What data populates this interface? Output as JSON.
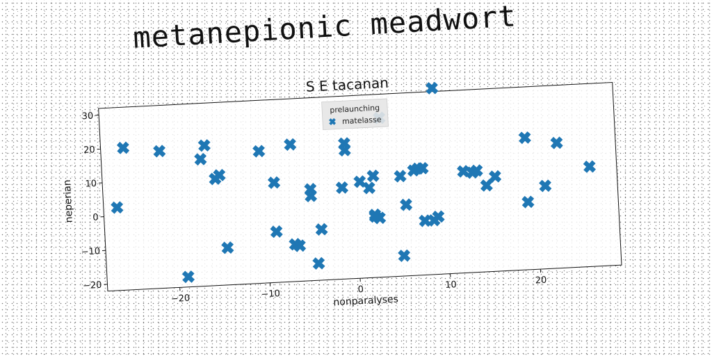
{
  "header": {
    "title": "metanepionic meadwort"
  },
  "chart_data": {
    "type": "scatter",
    "title": "S E tacanan",
    "xlabel": "nonparalyses",
    "ylabel": "neperian",
    "xlim": [
      -28,
      29
    ],
    "ylim": [
      -22,
      32
    ],
    "xticks": [
      -20,
      -10,
      0,
      10,
      20
    ],
    "yticks": [
      -20,
      -10,
      0,
      10,
      20,
      30
    ],
    "grid": false,
    "legend": {
      "title": "prelaunching",
      "position": "top-center"
    },
    "series": [
      {
        "name": "matelasse",
        "color": "#1f77b4",
        "marker": "X",
        "points": [
          [
            -26.5,
            2.5
          ],
          [
            -25.5,
            20
          ],
          [
            -21.5,
            18.5
          ],
          [
            -19,
            -19
          ],
          [
            -16.5,
            19.5
          ],
          [
            -17,
            15.5
          ],
          [
            -15.5,
            9.5
          ],
          [
            -15,
            10.5
          ],
          [
            -14.5,
            -11
          ],
          [
            -10.5,
            17
          ],
          [
            -9,
            7.5
          ],
          [
            -9,
            -7
          ],
          [
            -7,
            18.5
          ],
          [
            -7,
            -11
          ],
          [
            -6.5,
            -11.5
          ],
          [
            -5,
            5
          ],
          [
            -5,
            3
          ],
          [
            -4.5,
            -17
          ],
          [
            -4,
            -7
          ],
          [
            -1.5,
            5
          ],
          [
            -1,
            18
          ],
          [
            -1,
            16
          ],
          [
            0.5,
            6.5
          ],
          [
            1.5,
            4.5
          ],
          [
            2,
            8
          ],
          [
            2,
            -4
          ],
          [
            2.5,
            -4.5
          ],
          [
            2,
            -3.5
          ],
          [
            3,
            25
          ],
          [
            5,
            7.5
          ],
          [
            5,
            -16
          ],
          [
            5.5,
            -1
          ],
          [
            6.5,
            9
          ],
          [
            7,
            9.5
          ],
          [
            7.5,
            9.5
          ],
          [
            7.5,
            -6
          ],
          [
            8.5,
            -6
          ],
          [
            9,
            -5
          ],
          [
            9,
            33
          ],
          [
            12,
            8
          ],
          [
            13,
            7.5
          ],
          [
            13.5,
            8
          ],
          [
            14.5,
            3.5
          ],
          [
            15.5,
            6
          ],
          [
            19,
            17
          ],
          [
            19,
            -2
          ],
          [
            21,
            2.5
          ],
          [
            22.5,
            15
          ],
          [
            26,
            7.5
          ]
        ]
      }
    ]
  }
}
